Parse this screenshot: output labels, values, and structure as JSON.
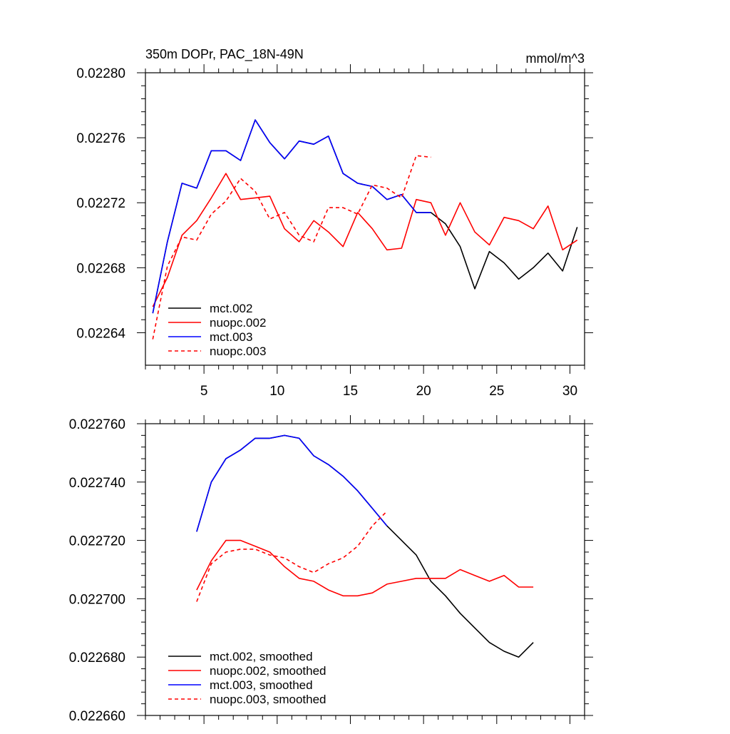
{
  "chart_data": [
    {
      "type": "line",
      "title": "350m DOPr, PAC_18N-49N",
      "units": "mmol/m^3",
      "xlabel": "",
      "ylabel": "",
      "xlim": [
        1,
        31
      ],
      "ylim": [
        0.02262,
        0.0228
      ],
      "x_ticks": [
        5,
        10,
        15,
        20,
        25,
        30
      ],
      "x_tick_labels": [
        "5",
        "10",
        "15",
        "20",
        "25",
        "30"
      ],
      "y_ticks": [
        0.02264,
        0.02268,
        0.02272,
        0.02276,
        0.0228
      ],
      "y_tick_labels": [
        "0.02264",
        "0.02268",
        "0.02272",
        "0.02276",
        "0.02280"
      ],
      "grid": false,
      "legend_position": "bottom-left",
      "series": [
        {
          "name": "mct.002",
          "color": "#000000",
          "dash": "solid",
          "x": [
            1.5,
            2.5,
            3.5,
            4.5,
            5.5,
            6.5,
            7.5,
            8.5,
            9.5,
            10.5,
            11.5,
            12.5,
            13.5,
            14.5,
            15.5,
            16.5,
            17.5,
            18.5,
            19.5,
            20.5,
            21.5,
            22.5,
            23.5,
            24.5,
            25.5,
            26.5,
            27.5,
            28.5,
            29.5,
            30.5
          ],
          "y": [
            0.022652,
            0.022696,
            0.022732,
            0.022729,
            0.022752,
            0.022752,
            0.022746,
            0.022771,
            0.022757,
            0.022747,
            0.022758,
            0.022756,
            0.022761,
            0.022738,
            0.022732,
            0.02273,
            0.022722,
            0.022725,
            0.022714,
            0.022714,
            0.022707,
            0.022693,
            0.022667,
            0.02269,
            0.022683,
            0.022673,
            0.02268,
            0.022689,
            0.022678,
            0.022705
          ]
        },
        {
          "name": "nuopc.002",
          "color": "#ff0000",
          "dash": "solid",
          "x": [
            1.5,
            2.5,
            3.5,
            4.5,
            5.5,
            6.5,
            7.5,
            8.5,
            9.5,
            10.5,
            11.5,
            12.5,
            13.5,
            14.5,
            15.5,
            16.5,
            17.5,
            18.5,
            19.5,
            20.5,
            21.5,
            22.5,
            23.5,
            24.5,
            25.5,
            26.5,
            27.5,
            28.5,
            29.5,
            30.5
          ],
          "y": [
            0.022656,
            0.022674,
            0.0227,
            0.022709,
            0.022723,
            0.022738,
            0.022722,
            0.022723,
            0.022724,
            0.022704,
            0.022696,
            0.022709,
            0.022702,
            0.022693,
            0.022714,
            0.022704,
            0.022691,
            0.022692,
            0.022722,
            0.02272,
            0.0227,
            0.02272,
            0.022702,
            0.022694,
            0.022711,
            0.022709,
            0.022704,
            0.022718,
            0.022691,
            0.022697
          ]
        },
        {
          "name": "mct.003",
          "color": "#0000ff",
          "dash": "solid",
          "x": [
            1.5,
            2.5,
            3.5,
            4.5,
            5.5,
            6.5,
            7.5,
            8.5,
            9.5,
            10.5,
            11.5,
            12.5,
            13.5,
            14.5,
            15.5,
            16.5,
            17.5,
            18.5,
            19.5,
            20.5
          ],
          "y": [
            0.022652,
            0.022696,
            0.022732,
            0.022729,
            0.022752,
            0.022752,
            0.022746,
            0.022771,
            0.022757,
            0.022747,
            0.022758,
            0.022756,
            0.022761,
            0.022738,
            0.022732,
            0.02273,
            0.022722,
            0.022725,
            0.022714,
            0.022714
          ]
        },
        {
          "name": "nuopc.003",
          "color": "#ff0000",
          "dash": "dashed",
          "x": [
            1.5,
            2.5,
            3.5,
            4.5,
            5.5,
            6.5,
            7.5,
            8.5,
            9.5,
            10.5,
            11.5,
            12.5,
            13.5,
            14.5,
            15.5,
            16.5,
            17.5,
            18.5,
            19.5,
            20.5
          ],
          "y": [
            0.022636,
            0.022681,
            0.022699,
            0.022697,
            0.022713,
            0.022721,
            0.022735,
            0.022727,
            0.02271,
            0.022714,
            0.0227,
            0.022696,
            0.022717,
            0.022717,
            0.022713,
            0.022731,
            0.022729,
            0.022723,
            0.022749,
            0.022748
          ]
        }
      ]
    },
    {
      "type": "line",
      "title": "",
      "xlabel": "",
      "ylabel": "",
      "xlim": [
        1,
        31
      ],
      "ylim": [
        0.02266,
        0.02276
      ],
      "x_ticks": [
        5,
        10,
        15,
        20,
        25,
        30
      ],
      "x_tick_labels": [
        "",
        "",
        "",
        "",
        "",
        ""
      ],
      "y_ticks": [
        0.02266,
        0.02268,
        0.0227,
        0.02272,
        0.02274,
        0.02276
      ],
      "y_tick_labels": [
        "0.022660",
        "0.022680",
        "0.022700",
        "0.022720",
        "0.022740",
        "0.022760"
      ],
      "grid": false,
      "legend_position": "bottom-left",
      "series": [
        {
          "name": "mct.002, smoothed",
          "color": "#000000",
          "dash": "solid",
          "x": [
            4.5,
            5.5,
            6.5,
            7.5,
            8.5,
            9.5,
            10.5,
            11.5,
            12.5,
            13.5,
            14.5,
            15.5,
            16.5,
            17.5,
            18.5,
            19.5,
            20.5,
            21.5,
            22.5,
            23.5,
            24.5,
            25.5,
            26.5,
            27.5
          ],
          "y": [
            0.022723,
            0.02274,
            0.022748,
            0.022751,
            0.022755,
            0.022755,
            0.022756,
            0.022755,
            0.022749,
            0.022746,
            0.022742,
            0.022737,
            0.022731,
            0.022725,
            0.02272,
            0.022715,
            0.022706,
            0.022701,
            0.022695,
            0.02269,
            0.022685,
            0.022682,
            0.02268,
            0.022685
          ]
        },
        {
          "name": "nuopc.002, smoothed",
          "color": "#ff0000",
          "dash": "solid",
          "x": [
            4.5,
            5.5,
            6.5,
            7.5,
            8.5,
            9.5,
            10.5,
            11.5,
            12.5,
            13.5,
            14.5,
            15.5,
            16.5,
            17.5,
            18.5,
            19.5,
            20.5,
            21.5,
            22.5,
            23.5,
            24.5,
            25.5,
            26.5,
            27.5
          ],
          "y": [
            0.022703,
            0.022713,
            0.02272,
            0.02272,
            0.022718,
            0.022716,
            0.022711,
            0.022707,
            0.022706,
            0.022703,
            0.022701,
            0.022701,
            0.022702,
            0.022705,
            0.022706,
            0.022707,
            0.022707,
            0.022707,
            0.02271,
            0.022708,
            0.022706,
            0.022708,
            0.022704,
            0.022704
          ]
        },
        {
          "name": "mct.003, smoothed",
          "color": "#0000ff",
          "dash": "solid",
          "x": [
            4.5,
            5.5,
            6.5,
            7.5,
            8.5,
            9.5,
            10.5,
            11.5,
            12.5,
            13.5,
            14.5,
            15.5,
            16.5,
            17.5
          ],
          "y": [
            0.022723,
            0.02274,
            0.022748,
            0.022751,
            0.022755,
            0.022755,
            0.022756,
            0.022755,
            0.022749,
            0.022746,
            0.022742,
            0.022737,
            0.022731,
            0.022725
          ]
        },
        {
          "name": "nuopc.003, smoothed",
          "color": "#ff0000",
          "dash": "dashed",
          "x": [
            4.5,
            5.5,
            6.5,
            7.5,
            8.5,
            9.5,
            10.5,
            11.5,
            12.5,
            13.5,
            14.5,
            15.5,
            16.5,
            17.5
          ],
          "y": [
            0.022699,
            0.022712,
            0.022716,
            0.022717,
            0.022717,
            0.022715,
            0.022714,
            0.022711,
            0.022709,
            0.022712,
            0.022714,
            0.022718,
            0.022725,
            0.02273
          ]
        }
      ]
    }
  ]
}
